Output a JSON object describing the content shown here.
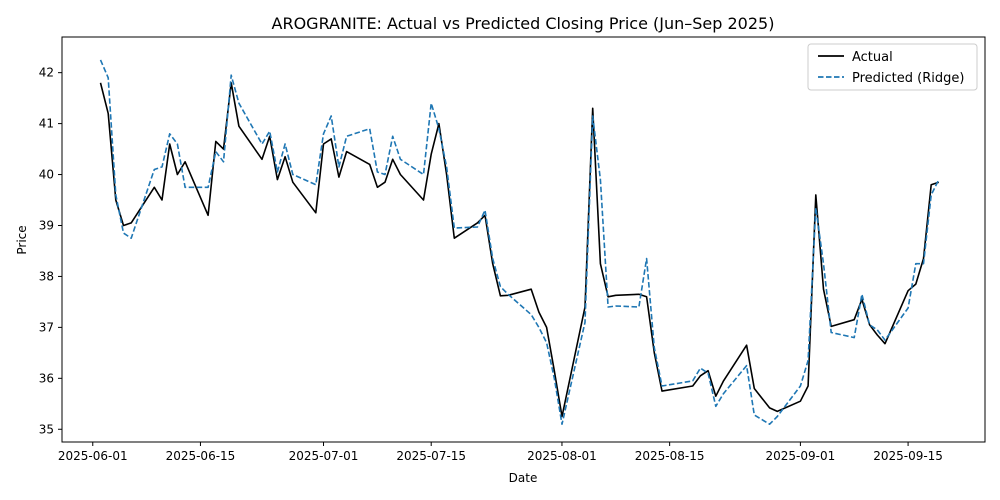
{
  "chart_data": {
    "type": "line",
    "title": "AROGRANITE: Actual vs Predicted Closing Price (Jun–Sep 2025)",
    "xlabel": "Date",
    "ylabel": "Price",
    "xlim": [
      "2025-05-28",
      "2025-09-25"
    ],
    "ylim": [
      34.75,
      42.7
    ],
    "x_ticks": [
      "2025-06-01",
      "2025-06-15",
      "2025-07-01",
      "2025-07-15",
      "2025-08-01",
      "2025-08-15",
      "2025-09-01",
      "2025-09-15"
    ],
    "y_ticks": [
      35,
      36,
      37,
      38,
      39,
      40,
      41,
      42
    ],
    "grid": false,
    "legend": "top-right",
    "x": [
      "2025-06-02",
      "2025-06-03",
      "2025-06-04",
      "2025-06-05",
      "2025-06-06",
      "2025-06-09",
      "2025-06-10",
      "2025-06-11",
      "2025-06-12",
      "2025-06-13",
      "2025-06-16",
      "2025-06-17",
      "2025-06-18",
      "2025-06-19",
      "2025-06-20",
      "2025-06-23",
      "2025-06-24",
      "2025-06-25",
      "2025-06-26",
      "2025-06-27",
      "2025-06-30",
      "2025-07-01",
      "2025-07-02",
      "2025-07-03",
      "2025-07-04",
      "2025-07-07",
      "2025-07-08",
      "2025-07-09",
      "2025-07-10",
      "2025-07-11",
      "2025-07-14",
      "2025-07-15",
      "2025-07-16",
      "2025-07-17",
      "2025-07-18",
      "2025-07-21",
      "2025-07-22",
      "2025-07-23",
      "2025-07-24",
      "2025-07-25",
      "2025-07-28",
      "2025-07-29",
      "2025-07-30",
      "2025-07-31",
      "2025-08-01",
      "2025-08-04",
      "2025-08-05",
      "2025-08-06",
      "2025-08-07",
      "2025-08-08",
      "2025-08-11",
      "2025-08-12",
      "2025-08-13",
      "2025-08-14",
      "2025-08-18",
      "2025-08-19",
      "2025-08-20",
      "2025-08-21",
      "2025-08-22",
      "2025-08-25",
      "2025-08-26",
      "2025-08-28",
      "2025-08-29",
      "2025-09-01",
      "2025-09-02",
      "2025-09-03",
      "2025-09-04",
      "2025-09-05",
      "2025-09-08",
      "2025-09-09",
      "2025-09-10",
      "2025-09-11",
      "2025-09-12",
      "2025-09-15",
      "2025-09-16",
      "2025-09-17",
      "2025-09-18",
      "2025-09-19"
    ],
    "series": [
      {
        "name": "Actual",
        "color": "#000000",
        "style": "solid",
        "values": [
          41.8,
          41.2,
          39.5,
          39.0,
          39.05,
          39.75,
          39.5,
          40.6,
          40.0,
          40.25,
          39.2,
          40.65,
          40.5,
          41.8,
          40.95,
          40.3,
          40.75,
          39.9,
          40.35,
          39.85,
          39.25,
          40.6,
          40.7,
          39.95,
          40.45,
          40.2,
          39.75,
          39.85,
          40.3,
          40.0,
          39.5,
          40.4,
          41.0,
          40.0,
          38.75,
          39.05,
          39.2,
          38.25,
          37.62,
          37.63,
          37.75,
          37.3,
          37.0,
          36.15,
          35.25,
          37.4,
          41.3,
          38.25,
          37.6,
          37.63,
          37.65,
          37.6,
          36.5,
          35.75,
          35.85,
          36.05,
          36.15,
          35.65,
          35.95,
          36.65,
          35.8,
          35.42,
          35.35,
          35.55,
          35.85,
          39.6,
          37.75,
          37.02,
          37.15,
          37.55,
          37.05,
          36.85,
          36.68,
          37.72,
          37.85,
          38.35,
          39.8,
          39.85
        ]
      },
      {
        "name": "Predicted (Ridge)",
        "color": "#1f77b4",
        "style": "dashed",
        "values": [
          42.25,
          41.9,
          39.6,
          38.85,
          38.75,
          40.1,
          40.15,
          40.8,
          40.6,
          39.75,
          39.75,
          40.45,
          40.25,
          41.95,
          41.4,
          40.6,
          40.85,
          40.05,
          40.6,
          40.0,
          39.8,
          40.8,
          41.15,
          40.15,
          40.75,
          40.9,
          40.05,
          40.0,
          40.75,
          40.3,
          40.0,
          41.4,
          40.9,
          40.15,
          38.95,
          38.97,
          39.3,
          38.35,
          37.8,
          37.65,
          37.25,
          37.0,
          36.7,
          36.0,
          35.1,
          37.1,
          41.15,
          39.9,
          37.4,
          37.42,
          37.4,
          38.35,
          36.6,
          35.85,
          35.95,
          36.2,
          36.1,
          35.45,
          35.7,
          36.25,
          35.28,
          35.1,
          35.25,
          35.85,
          36.35,
          39.35,
          38.25,
          36.9,
          36.8,
          37.65,
          37.05,
          36.95,
          36.75,
          37.38,
          38.25,
          38.25,
          39.6,
          39.9
        ]
      }
    ]
  }
}
